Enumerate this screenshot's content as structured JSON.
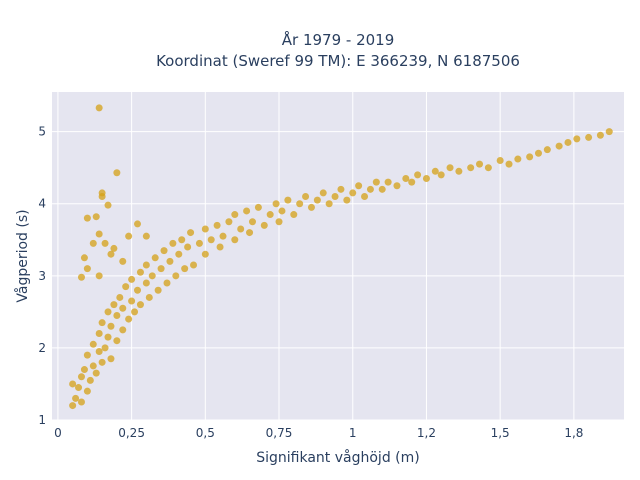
{
  "chart_data": {
    "type": "scatter",
    "title_lines": [
      "År 1979 - 2019",
      "Koordinat (Sweref 99 TM): E 366239, N 6187506"
    ],
    "xlabel": "Signifikant våghöjd (m)",
    "ylabel": "Vågperiod (s)",
    "xlim": [
      -0.02,
      1.92
    ],
    "ylim": [
      1.0,
      5.55
    ],
    "x_ticks": [
      0,
      0.25,
      0.5,
      0.75,
      1,
      1.25,
      1.5,
      1.75
    ],
    "x_tick_labels": [
      "0",
      "0,25",
      "0,5",
      "0,75",
      "1",
      "1,2",
      "1,5",
      "1,8"
    ],
    "y_ticks": [
      1,
      2,
      3,
      4,
      5
    ],
    "y_tick_labels": [
      "1",
      "2",
      "3",
      "4",
      "5"
    ],
    "grid": true,
    "marker_color": "#d4a017",
    "plot_background": "#e5e5f0",
    "series": [
      {
        "points": [
          [
            0.05,
            1.2
          ],
          [
            0.05,
            1.5
          ],
          [
            0.06,
            1.3
          ],
          [
            0.07,
            1.45
          ],
          [
            0.08,
            1.25
          ],
          [
            0.08,
            1.6
          ],
          [
            0.09,
            1.7
          ],
          [
            0.1,
            1.4
          ],
          [
            0.1,
            1.9
          ],
          [
            0.11,
            1.55
          ],
          [
            0.12,
            1.75
          ],
          [
            0.12,
            2.05
          ],
          [
            0.13,
            1.65
          ],
          [
            0.14,
            1.95
          ],
          [
            0.14,
            2.2
          ],
          [
            0.15,
            1.8
          ],
          [
            0.15,
            2.35
          ],
          [
            0.16,
            2.0
          ],
          [
            0.17,
            2.15
          ],
          [
            0.17,
            2.5
          ],
          [
            0.18,
            1.85
          ],
          [
            0.18,
            2.3
          ],
          [
            0.19,
            2.6
          ],
          [
            0.2,
            2.1
          ],
          [
            0.2,
            2.45
          ],
          [
            0.21,
            2.7
          ],
          [
            0.22,
            2.25
          ],
          [
            0.22,
            2.55
          ],
          [
            0.23,
            2.85
          ],
          [
            0.24,
            2.4
          ],
          [
            0.25,
            2.65
          ],
          [
            0.25,
            2.95
          ],
          [
            0.26,
            2.5
          ],
          [
            0.27,
            2.8
          ],
          [
            0.28,
            3.05
          ],
          [
            0.28,
            2.6
          ],
          [
            0.3,
            2.9
          ],
          [
            0.3,
            3.15
          ],
          [
            0.31,
            2.7
          ],
          [
            0.32,
            3.0
          ],
          [
            0.33,
            3.25
          ],
          [
            0.34,
            2.8
          ],
          [
            0.35,
            3.1
          ],
          [
            0.36,
            3.35
          ],
          [
            0.37,
            2.9
          ],
          [
            0.38,
            3.2
          ],
          [
            0.39,
            3.45
          ],
          [
            0.4,
            3.0
          ],
          [
            0.41,
            3.3
          ],
          [
            0.42,
            3.5
          ],
          [
            0.43,
            3.1
          ],
          [
            0.44,
            3.4
          ],
          [
            0.45,
            3.6
          ],
          [
            0.46,
            3.15
          ],
          [
            0.48,
            3.45
          ],
          [
            0.5,
            3.3
          ],
          [
            0.5,
            3.65
          ],
          [
            0.52,
            3.5
          ],
          [
            0.54,
            3.7
          ],
          [
            0.55,
            3.4
          ],
          [
            0.56,
            3.55
          ],
          [
            0.58,
            3.75
          ],
          [
            0.6,
            3.5
          ],
          [
            0.6,
            3.85
          ],
          [
            0.62,
            3.65
          ],
          [
            0.64,
            3.9
          ],
          [
            0.65,
            3.6
          ],
          [
            0.66,
            3.75
          ],
          [
            0.68,
            3.95
          ],
          [
            0.7,
            3.7
          ],
          [
            0.72,
            3.85
          ],
          [
            0.74,
            4.0
          ],
          [
            0.75,
            3.75
          ],
          [
            0.76,
            3.9
          ],
          [
            0.78,
            4.05
          ],
          [
            0.8,
            3.85
          ],
          [
            0.82,
            4.0
          ],
          [
            0.84,
            4.1
          ],
          [
            0.86,
            3.95
          ],
          [
            0.88,
            4.05
          ],
          [
            0.9,
            4.15
          ],
          [
            0.92,
            4.0
          ],
          [
            0.94,
            4.1
          ],
          [
            0.96,
            4.2
          ],
          [
            0.98,
            4.05
          ],
          [
            1.0,
            4.15
          ],
          [
            1.02,
            4.25
          ],
          [
            1.04,
            4.1
          ],
          [
            1.06,
            4.2
          ],
          [
            1.08,
            4.3
          ],
          [
            1.1,
            4.2
          ],
          [
            1.12,
            4.3
          ],
          [
            1.15,
            4.25
          ],
          [
            1.18,
            4.35
          ],
          [
            1.2,
            4.3
          ],
          [
            1.22,
            4.4
          ],
          [
            1.25,
            4.35
          ],
          [
            1.28,
            4.45
          ],
          [
            1.3,
            4.4
          ],
          [
            1.33,
            4.5
          ],
          [
            1.36,
            4.45
          ],
          [
            1.4,
            4.5
          ],
          [
            1.43,
            4.55
          ],
          [
            1.46,
            4.5
          ],
          [
            1.5,
            4.6
          ],
          [
            1.53,
            4.55
          ],
          [
            1.56,
            4.62
          ],
          [
            1.6,
            4.65
          ],
          [
            1.63,
            4.7
          ],
          [
            1.66,
            4.75
          ],
          [
            1.7,
            4.8
          ],
          [
            1.73,
            4.85
          ],
          [
            1.76,
            4.9
          ],
          [
            1.8,
            4.92
          ],
          [
            1.84,
            4.95
          ],
          [
            1.87,
            5.0
          ],
          [
            0.14,
            5.33
          ],
          [
            0.15,
            4.15
          ],
          [
            0.15,
            4.1
          ],
          [
            0.2,
            4.43
          ],
          [
            0.1,
            3.8
          ],
          [
            0.13,
            3.82
          ],
          [
            0.17,
            3.98
          ],
          [
            0.14,
            3.58
          ],
          [
            0.16,
            3.45
          ],
          [
            0.12,
            3.45
          ],
          [
            0.09,
            3.25
          ],
          [
            0.1,
            3.1
          ],
          [
            0.19,
            3.38
          ],
          [
            0.22,
            3.2
          ],
          [
            0.14,
            3.0
          ],
          [
            0.18,
            3.3
          ],
          [
            0.08,
            2.98
          ],
          [
            0.24,
            3.55
          ],
          [
            0.27,
            3.72
          ],
          [
            0.3,
            3.55
          ]
        ]
      }
    ]
  }
}
